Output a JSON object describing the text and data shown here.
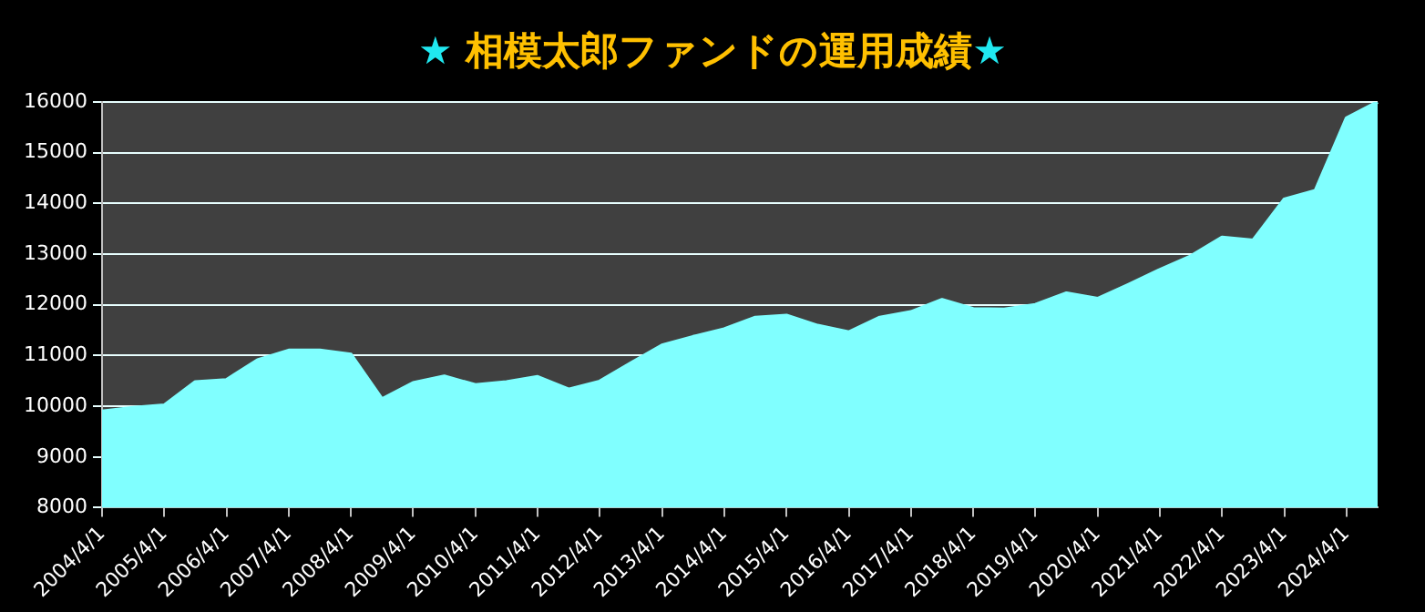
{
  "chart_data": {
    "type": "area",
    "title": "★ 相模太郎ファンドの運用成績★",
    "categories": [
      "2004/4/1",
      null,
      "2005/4/1",
      null,
      "2006/4/1",
      null,
      "2007/4/1",
      null,
      "2008/4/1",
      null,
      "2009/4/1",
      null,
      "2010/4/1",
      null,
      "2011/4/1",
      null,
      "2012/4/1",
      null,
      "2013/4/1",
      null,
      "2014/4/1",
      null,
      "2015/4/1",
      null,
      "2016/4/1",
      null,
      "2017/4/1",
      null,
      "2018/4/1",
      null,
      "2019/4/1",
      null,
      "2020/4/1",
      null,
      "2021/4/1",
      null,
      "2022/4/1",
      null,
      "2023/4/1",
      null,
      "2024/4/1",
      null
    ],
    "series": [
      {
        "color": "#80ffff",
        "values": [
          9900,
          9970,
          10020,
          10480,
          10520,
          10910,
          11100,
          11100,
          11020,
          10140,
          10460,
          10590,
          10420,
          10480,
          10580,
          10330,
          10490,
          10850,
          11200,
          11370,
          11520,
          11750,
          11790,
          11590,
          11460,
          11750,
          11860,
          12100,
          11920,
          11910,
          12000,
          12230,
          12120,
          12400,
          12690,
          12960,
          13330,
          13270,
          14080,
          14250,
          15680,
          16000
        ]
      }
    ],
    "ylim": [
      8000,
      16000
    ],
    "yticks": [
      8000,
      9000,
      10000,
      11000,
      12000,
      13000,
      14000,
      15000,
      16000
    ],
    "grid": "y",
    "legend": false
  }
}
